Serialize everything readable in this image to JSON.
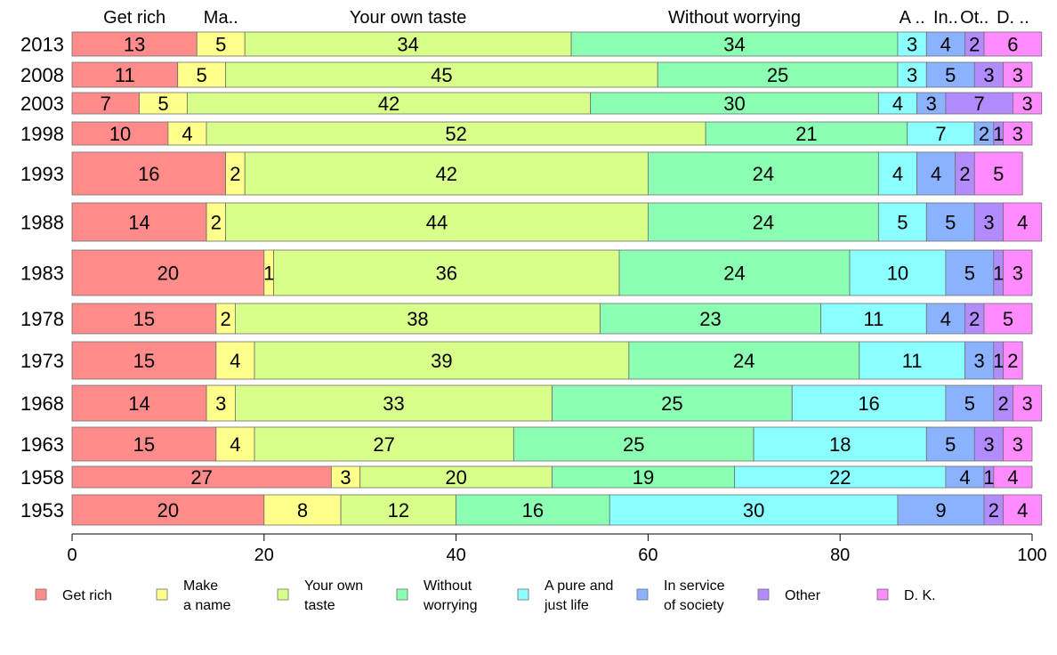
{
  "chart_data": {
    "type": "bar",
    "orientation": "horizontal",
    "stacked": true,
    "categories": [
      "2013",
      "2008",
      "2003",
      "1998",
      "1993",
      "1988",
      "1983",
      "1978",
      "1973",
      "1968",
      "1963",
      "1958",
      "1953"
    ],
    "series": [
      {
        "name": "Get rich",
        "legend_label": [
          "Get rich"
        ],
        "top_label": "Get rich",
        "color": "#ff8b8b",
        "values": [
          13,
          11,
          7,
          10,
          16,
          14,
          20,
          15,
          15,
          14,
          15,
          27,
          20
        ]
      },
      {
        "name": "Make a name",
        "legend_label": [
          "Make",
          "a name"
        ],
        "top_label": "Ma..",
        "color": "#ffff8b",
        "values": [
          5,
          5,
          5,
          4,
          2,
          2,
          1,
          2,
          4,
          3,
          4,
          3,
          8
        ]
      },
      {
        "name": "Your own taste",
        "legend_label": [
          "Your own",
          "taste"
        ],
        "top_label": "Your own taste",
        "color": "#d9ff8b",
        "values": [
          34,
          45,
          42,
          52,
          42,
          44,
          36,
          38,
          39,
          33,
          27,
          20,
          12
        ]
      },
      {
        "name": "Without worrying",
        "legend_label": [
          "Without",
          "worrying"
        ],
        "top_label": "Without worrying",
        "color": "#8bffb2",
        "values": [
          34,
          25,
          30,
          21,
          24,
          24,
          24,
          23,
          24,
          25,
          25,
          19,
          16
        ]
      },
      {
        "name": "A pure and just life",
        "legend_label": [
          "A pure and",
          "just life"
        ],
        "top_label": "A ..",
        "color": "#8bffff",
        "values": [
          3,
          3,
          4,
          7,
          4,
          5,
          10,
          11,
          11,
          16,
          18,
          22,
          30
        ]
      },
      {
        "name": "In service of society",
        "legend_label": [
          "In service",
          "of society"
        ],
        "top_label": "In..",
        "color": "#8bb2ff",
        "values": [
          4,
          5,
          3,
          2,
          4,
          5,
          5,
          4,
          3,
          5,
          5,
          4,
          9
        ]
      },
      {
        "name": "Other",
        "legend_label": [
          "Other"
        ],
        "top_label": "Ot..",
        "color": "#b28bff",
        "values": [
          2,
          3,
          7,
          1,
          2,
          3,
          1,
          2,
          1,
          2,
          3,
          1,
          2
        ]
      },
      {
        "name": "D. K.",
        "legend_label": [
          "D. K."
        ],
        "top_label": "D. ..",
        "color": "#ff8bff",
        "values": [
          6,
          3,
          3,
          3,
          5,
          4,
          3,
          5,
          2,
          3,
          3,
          4,
          4
        ]
      }
    ],
    "xlim": [
      0,
      100
    ],
    "xticks": [
      0,
      20,
      40,
      60,
      80,
      100
    ],
    "title": "",
    "xlabel": "",
    "ylabel": "",
    "grid": false,
    "legend_position": "bottom"
  }
}
